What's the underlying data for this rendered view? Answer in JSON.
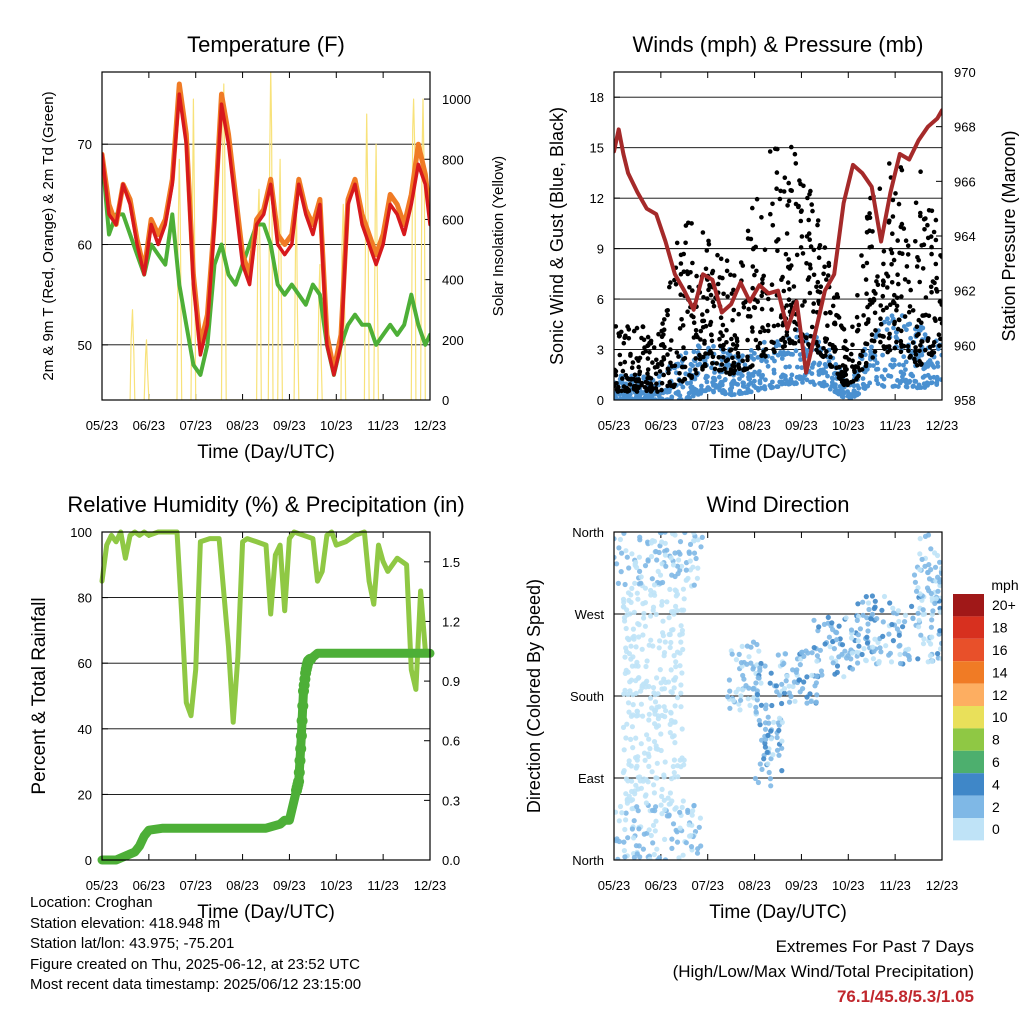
{
  "chart_data": [
    {
      "type": "line",
      "title": "Temperature (F)",
      "xlabel": "Time (Day/UTC)",
      "ylabel": "2m & 9m T (Red, Orange) & 2m Td (Green)",
      "y2label": "Solar Insolation (Yellow)",
      "x_ticks": [
        "05/23",
        "06/23",
        "07/23",
        "08/23",
        "09/23",
        "10/23",
        "11/23",
        "12/23"
      ],
      "y_ticks": [
        50,
        60,
        70
      ],
      "y2_ticks": [
        0,
        200,
        400,
        600,
        800,
        1000
      ],
      "xlim": [
        0,
        7
      ],
      "ylim": [
        44.5,
        77.2
      ],
      "y2lim": [
        0,
        1090
      ],
      "grid": true,
      "colors": {
        "t2m": "#d7191c",
        "t9m": "#f07b25",
        "td2m": "#4daf37",
        "solar": "#f8e27a"
      },
      "series": [
        {
          "name": "2m T",
          "x": [
            0,
            0.15,
            0.3,
            0.45,
            0.6,
            0.75,
            0.9,
            1.05,
            1.2,
            1.35,
            1.5,
            1.65,
            1.8,
            1.95,
            2.1,
            2.25,
            2.4,
            2.55,
            2.7,
            2.85,
            3.0,
            3.15,
            3.3,
            3.45,
            3.6,
            3.75,
            3.9,
            4.05,
            4.2,
            4.35,
            4.5,
            4.65,
            4.8,
            4.95,
            5.1,
            5.25,
            5.4,
            5.55,
            5.7,
            5.85,
            6.0,
            6.15,
            6.3,
            6.45,
            6.6,
            6.75,
            6.9,
            7.0
          ],
          "y": [
            69,
            63,
            62,
            66,
            64,
            60,
            57,
            62,
            60,
            62,
            66,
            75,
            70,
            56,
            49,
            52,
            62,
            74,
            70,
            64,
            58,
            56,
            62,
            63,
            66,
            60,
            59,
            60,
            66,
            63,
            61,
            64,
            50,
            47,
            50,
            64,
            66,
            62,
            60,
            58,
            60,
            64,
            63,
            61,
            64,
            68,
            66,
            62
          ]
        },
        {
          "name": "9m T",
          "x": [
            0,
            0.15,
            0.3,
            0.45,
            0.6,
            0.75,
            0.9,
            1.05,
            1.2,
            1.35,
            1.5,
            1.65,
            1.8,
            1.95,
            2.1,
            2.25,
            2.4,
            2.55,
            2.7,
            2.85,
            3.0,
            3.15,
            3.3,
            3.45,
            3.6,
            3.75,
            3.9,
            4.05,
            4.2,
            4.35,
            4.5,
            4.65,
            4.8,
            4.95,
            5.1,
            5.25,
            5.4,
            5.55,
            5.7,
            5.85,
            6.0,
            6.15,
            6.3,
            6.45,
            6.6,
            6.75,
            6.9,
            7.0
          ],
          "y": [
            69,
            64,
            62,
            66,
            64.5,
            60.5,
            57.5,
            62.5,
            61,
            62.5,
            66.5,
            76,
            71,
            57,
            50,
            53,
            62.5,
            75,
            71,
            65,
            59,
            57,
            62.5,
            63.5,
            66.5,
            61,
            60,
            61,
            66.5,
            63.5,
            62,
            64.5,
            51,
            47.5,
            51,
            64.5,
            66.5,
            63,
            61,
            59,
            61,
            65,
            64,
            62,
            65,
            70,
            67,
            63
          ]
        },
        {
          "name": "2m Td",
          "x": [
            0,
            0.15,
            0.3,
            0.45,
            0.6,
            0.75,
            0.9,
            1.05,
            1.2,
            1.35,
            1.5,
            1.65,
            1.8,
            1.95,
            2.1,
            2.25,
            2.4,
            2.55,
            2.7,
            2.85,
            3.0,
            3.15,
            3.3,
            3.45,
            3.6,
            3.75,
            3.9,
            4.05,
            4.2,
            4.35,
            4.5,
            4.65,
            4.8,
            4.95,
            5.1,
            5.25,
            5.4,
            5.55,
            5.7,
            5.85,
            6.0,
            6.15,
            6.3,
            6.45,
            6.6,
            6.75,
            6.9,
            7.0
          ],
          "y": [
            69,
            61,
            63,
            63,
            61,
            59,
            57,
            60,
            59,
            58,
            63,
            56,
            52,
            48,
            47,
            50,
            58,
            60,
            57,
            56,
            58,
            60,
            62,
            62,
            60,
            56,
            55,
            56,
            55,
            54,
            56,
            55,
            50,
            47,
            50,
            52,
            53,
            52,
            52,
            50,
            51,
            52,
            51,
            52,
            55,
            52,
            50,
            51
          ]
        },
        {
          "name": "Solar Insolation",
          "x": [
            0.6,
            0.62,
            0.65,
            0.68,
            0.7,
            0.9,
            0.93,
            0.95,
            0.97,
            1.0,
            1.6,
            1.62,
            1.65,
            1.67,
            1.7,
            1.9,
            1.93,
            1.95,
            1.97,
            2.0,
            2.55,
            2.58,
            2.6,
            2.62,
            2.65,
            3.3,
            3.33,
            3.35,
            3.38,
            3.4,
            3.55,
            3.58,
            3.6,
            3.62,
            3.65,
            3.75,
            3.78,
            3.8,
            3.82,
            3.85,
            4.1,
            4.13,
            4.15,
            4.17,
            4.2,
            4.6,
            4.63,
            4.65,
            4.67,
            4.7,
            5.1,
            5.12,
            5.15,
            5.17,
            5.2,
            5.6,
            5.63,
            5.65,
            5.68,
            5.7,
            5.8,
            5.83,
            5.85,
            5.87,
            5.9,
            6.6,
            6.63,
            6.65,
            6.68,
            6.7,
            6.8,
            6.83,
            6.85,
            6.88,
            6.9
          ],
          "y": [
            0,
            200,
            300,
            150,
            0,
            0,
            150,
            200,
            100,
            0,
            0,
            500,
            800,
            600,
            0,
            0,
            600,
            1000,
            700,
            0,
            0,
            900,
            1050,
            800,
            0,
            0,
            600,
            700,
            400,
            0,
            0,
            800,
            1100,
            900,
            0,
            0,
            600,
            800,
            500,
            0,
            0,
            500,
            650,
            300,
            0,
            0,
            350,
            450,
            200,
            0,
            0,
            500,
            650,
            400,
            0,
            0,
            700,
            950,
            600,
            0,
            0,
            600,
            850,
            500,
            0,
            0,
            900,
            1000,
            800,
            0,
            0,
            800,
            1000,
            700,
            0
          ]
        }
      ]
    },
    {
      "type": "scatter",
      "title": "Winds (mph) & Pressure (mb)",
      "xlabel": "Time (Day/UTC)",
      "ylabel": "Sonic Wind & Gust (Blue, Black)",
      "y2label": "Station Pressure (Maroon)",
      "x_ticks": [
        "05/23",
        "06/23",
        "07/23",
        "08/23",
        "09/23",
        "10/23",
        "11/23",
        "12/23"
      ],
      "y_ticks": [
        0,
        3,
        6,
        9,
        12,
        15,
        18
      ],
      "y2_ticks": [
        958,
        960,
        962,
        964,
        966,
        968,
        970
      ],
      "xlim": [
        0,
        7
      ],
      "ylim": [
        0,
        19.5
      ],
      "y2lim": [
        958,
        970
      ],
      "grid": true,
      "colors": {
        "wind": "#4a90d0",
        "gust": "#000000",
        "pressure": "#a52a2a"
      },
      "pressure": {
        "x": [
          0,
          0.1,
          0.2,
          0.3,
          0.5,
          0.7,
          0.9,
          1.1,
          1.3,
          1.5,
          1.7,
          1.9,
          2.1,
          2.3,
          2.5,
          2.7,
          2.9,
          3.1,
          3.3,
          3.5,
          3.7,
          3.9,
          4.1,
          4.3,
          4.5,
          4.7,
          4.9,
          5.1,
          5.3,
          5.5,
          5.7,
          5.9,
          6.1,
          6.3,
          6.5,
          6.7,
          6.9,
          7.0
        ],
        "y": [
          967.1,
          967.9,
          967.0,
          966.3,
          965.6,
          965.0,
          964.8,
          963.8,
          962.6,
          962.0,
          961.3,
          962.6,
          962.4,
          961.2,
          961.5,
          962.3,
          961.6,
          962.2,
          961.9,
          962.0,
          960.6,
          961.6,
          959.0,
          960.5,
          962.0,
          962.6,
          965.2,
          966.6,
          966.3,
          965.8,
          963.8,
          965.6,
          967.0,
          966.8,
          967.5,
          968.0,
          968.3,
          968.6
        ]
      },
      "wind_envelope": {
        "x": [
          0,
          0.5,
          1.0,
          1.5,
          2.0,
          2.5,
          3.0,
          3.5,
          4.0,
          4.5,
          5.0,
          5.5,
          6.0,
          6.5,
          7.0
        ],
        "low": [
          0,
          0,
          0,
          0,
          0.5,
          0.3,
          0.5,
          0.8,
          1.0,
          0.8,
          0,
          0.8,
          0.8,
          0.7,
          0.8
        ],
        "high": [
          1.5,
          1.5,
          1.5,
          3.0,
          3.5,
          3.0,
          3.5,
          4.0,
          4.5,
          3.5,
          1.0,
          4.0,
          5.5,
          4.5,
          3.5
        ]
      },
      "gust_envelope": {
        "x": [
          0,
          0.5,
          1.0,
          1.5,
          2.0,
          2.5,
          3.0,
          3.5,
          4.0,
          4.5,
          5.0,
          5.5,
          6.0,
          6.5,
          7.0
        ],
        "low": [
          0.5,
          0.5,
          0.5,
          1.0,
          2.0,
          1.5,
          2.0,
          3.0,
          3.5,
          2.5,
          0.5,
          2.5,
          3.0,
          2.0,
          3.0
        ],
        "high": [
          4.5,
          4.5,
          4.0,
          12.0,
          10.0,
          8.0,
          12.0,
          17.0,
          14.0,
          10.0,
          3.0,
          13.0,
          15.0,
          14.0,
          10.0
        ]
      }
    },
    {
      "type": "line",
      "title": "Relative Humidity (%) & Precipitation (in)",
      "xlabel": "Time (Day/UTC)",
      "ylabel": "Percent & Total Rainfall",
      "x_ticks": [
        "05/23",
        "06/23",
        "07/23",
        "08/23",
        "09/23",
        "10/23",
        "11/23",
        "12/23"
      ],
      "y_ticks": [
        0,
        20,
        40,
        60,
        80,
        100
      ],
      "y2_ticks": [
        "0.0",
        "0.3",
        "0.6",
        "0.9",
        "1.2",
        "1.5"
      ],
      "xlim": [
        0,
        7
      ],
      "ylim": [
        0,
        100
      ],
      "y2lim": [
        0,
        1.65
      ],
      "grid": true,
      "colors": {
        "rh": "#8fc844",
        "precip": "#4daf37"
      },
      "series": [
        {
          "name": "Relative Humidity",
          "x": [
            0,
            0.1,
            0.2,
            0.3,
            0.4,
            0.5,
            0.6,
            0.7,
            0.8,
            0.9,
            1.0,
            1.2,
            1.4,
            1.6,
            1.7,
            1.8,
            1.9,
            2.0,
            2.1,
            2.3,
            2.5,
            2.7,
            2.8,
            2.9,
            3.0,
            3.1,
            3.3,
            3.5,
            3.6,
            3.7,
            3.8,
            3.9,
            4.0,
            4.1,
            4.3,
            4.5,
            4.6,
            4.7,
            4.8,
            4.9,
            5.0,
            5.2,
            5.4,
            5.6,
            5.7,
            5.8,
            5.9,
            6.0,
            6.1,
            6.3,
            6.5,
            6.6,
            6.7,
            6.8,
            6.9,
            7.0
          ],
          "y": [
            85,
            96,
            99,
            97,
            100,
            92,
            99,
            100,
            99,
            100,
            99,
            100,
            100,
            100,
            75,
            48,
            44,
            58,
            97,
            98,
            98,
            65,
            42,
            62,
            97,
            98,
            97,
            96,
            75,
            93,
            96,
            76,
            98,
            100,
            99,
            98,
            85,
            88,
            99,
            100,
            96,
            97,
            99,
            100,
            85,
            78,
            96,
            91,
            88,
            92,
            90,
            58,
            52,
            82,
            64,
            63
          ]
        },
        {
          "name": "Total Rainfall",
          "x": [
            0,
            0.3,
            0.5,
            0.7,
            0.8,
            0.9,
            1.0,
            1.3,
            1.6,
            2.0,
            2.5,
            3.0,
            3.5,
            3.8,
            3.9,
            4.0,
            4.1,
            4.2,
            4.25,
            4.3,
            4.35,
            4.4,
            4.5,
            4.6,
            4.8,
            5.0,
            5.5,
            6.0,
            6.5,
            7.0
          ],
          "y": [
            0,
            0.0,
            0.02,
            0.04,
            0.07,
            0.12,
            0.15,
            0.16,
            0.16,
            0.16,
            0.16,
            0.16,
            0.16,
            0.18,
            0.2,
            0.2,
            0.3,
            0.4,
            0.6,
            0.85,
            0.95,
            1.0,
            1.02,
            1.04,
            1.04,
            1.04,
            1.04,
            1.04,
            1.04,
            1.04
          ]
        }
      ]
    },
    {
      "type": "scatter",
      "title": "Wind Direction",
      "xlabel": "Time (Day/UTC)",
      "ylabel": "Direction (Colored By Speed)",
      "x_ticks": [
        "05/23",
        "06/23",
        "07/23",
        "08/23",
        "09/23",
        "10/23",
        "11/23",
        "12/23"
      ],
      "y_ticks": [
        "North",
        "East",
        "South",
        "West",
        "North"
      ],
      "xlim": [
        0,
        7
      ],
      "ylim": [
        0,
        360
      ],
      "grid": true,
      "colorbar": {
        "title": "mph",
        "labels": [
          "20+",
          "18",
          "16",
          "14",
          "12",
          "10",
          "8",
          "6",
          "4",
          "2",
          "0"
        ],
        "colors": [
          "#a01818",
          "#d7301f",
          "#e8502a",
          "#f07b25",
          "#fdae61",
          "#e9e05a",
          "#8fc844",
          "#4daf6e",
          "#3f87c8",
          "#7fb8e6",
          "#bfe3f7"
        ]
      },
      "clusters": [
        {
          "x": [
            0,
            1.9
          ],
          "dir": [
            0,
            60
          ],
          "speed": [
            0,
            4
          ]
        },
        {
          "x": [
            0,
            1.9
          ],
          "dir": [
            300,
            360
          ],
          "speed": [
            0,
            4
          ]
        },
        {
          "x": [
            0.2,
            1.5
          ],
          "dir": [
            60,
            300
          ],
          "speed": [
            0,
            2
          ]
        },
        {
          "x": [
            2.4,
            3.1
          ],
          "dir": [
            160,
            240
          ],
          "speed": [
            1,
            4
          ]
        },
        {
          "x": [
            3.0,
            3.6
          ],
          "dir": [
            80,
            220
          ],
          "speed": [
            1,
            5
          ]
        },
        {
          "x": [
            3.5,
            4.4
          ],
          "dir": [
            170,
            230
          ],
          "speed": [
            1,
            5
          ]
        },
        {
          "x": [
            4.2,
            5.2
          ],
          "dir": [
            200,
            270
          ],
          "speed": [
            1,
            5
          ]
        },
        {
          "x": [
            5.0,
            7.0
          ],
          "dir": [
            215,
            290
          ],
          "speed": [
            0,
            5
          ]
        },
        {
          "x": [
            6.4,
            7.0
          ],
          "dir": [
            270,
            360
          ],
          "speed": [
            1,
            4
          ]
        }
      ]
    }
  ],
  "footer": {
    "location": "Location: Croghan",
    "elevation": "Station elevation: 418.948 m",
    "latlon": "Station lat/lon: 43.975; -75.201",
    "created": "Figure created on Thu, 2025-06-12, at 23:52 UTC",
    "recent": "Most recent data timestamp: 2025/06/12 23:15:00"
  },
  "extremes": {
    "title": "Extremes For Past 7 Days",
    "subtitle": "(High/Low/Max Wind/Total Precipitation)",
    "values": "76.1/45.8/5.3/1.05"
  }
}
